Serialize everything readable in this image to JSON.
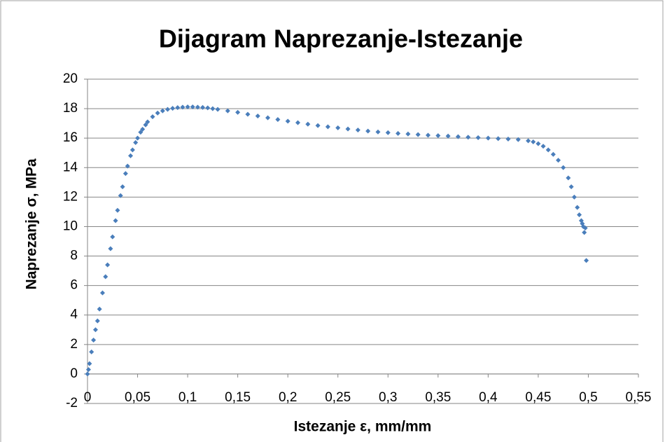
{
  "chart_data": {
    "type": "scatter",
    "title": "Dijagram Naprezanje-Istezanje",
    "x_label": "Istezanje ε, mm/mm",
    "y_label": "Naprezanje σ, MPa",
    "color": "#4a7ebb",
    "x": [
      0,
      0.001,
      0.002,
      0.004,
      0.006,
      0.008,
      0.01,
      0.012,
      0.015,
      0.018,
      0.02,
      0.023,
      0.025,
      0.028,
      0.03,
      0.033,
      0.035,
      0.038,
      0.04,
      0.043,
      0.045,
      0.048,
      0.05,
      0.053,
      0.055,
      0.058,
      0.06,
      0.065,
      0.07,
      0.075,
      0.08,
      0.085,
      0.09,
      0.095,
      0.1,
      0.105,
      0.11,
      0.115,
      0.12,
      0.125,
      0.13,
      0.14,
      0.15,
      0.16,
      0.17,
      0.18,
      0.19,
      0.2,
      0.21,
      0.22,
      0.23,
      0.24,
      0.25,
      0.26,
      0.27,
      0.28,
      0.29,
      0.3,
      0.31,
      0.32,
      0.33,
      0.34,
      0.35,
      0.36,
      0.37,
      0.38,
      0.39,
      0.4,
      0.41,
      0.42,
      0.43,
      0.44,
      0.445,
      0.45,
      0.455,
      0.46,
      0.465,
      0.47,
      0.475,
      0.48,
      0.483,
      0.486,
      0.489,
      0.491,
      0.493,
      0.494,
      0.495,
      0.496,
      0.497,
      0.498
    ],
    "values": [
      0,
      0.3,
      0.7,
      1.5,
      2.3,
      3.0,
      3.6,
      4.4,
      5.5,
      6.6,
      7.4,
      8.5,
      9.3,
      10.4,
      11.1,
      12.1,
      12.7,
      13.6,
      14.1,
      14.8,
      15.2,
      15.7,
      16.0,
      16.4,
      16.6,
      16.9,
      17.1,
      17.45,
      17.7,
      17.85,
      17.95,
      18.02,
      18.07,
      18.1,
      18.12,
      18.12,
      18.1,
      18.08,
      18.05,
      18.0,
      17.95,
      17.85,
      17.75,
      17.62,
      17.5,
      17.38,
      17.26,
      17.15,
      17.05,
      16.95,
      16.85,
      16.77,
      16.7,
      16.62,
      16.55,
      16.48,
      16.42,
      16.37,
      16.32,
      16.28,
      16.24,
      16.2,
      16.17,
      16.14,
      16.1,
      16.06,
      16.03,
      16.0,
      15.97,
      15.94,
      15.9,
      15.82,
      15.75,
      15.62,
      15.45,
      15.2,
      14.9,
      14.5,
      14.0,
      13.3,
      12.7,
      12.0,
      11.3,
      10.8,
      10.4,
      10.2,
      10.0,
      9.6,
      9.9,
      7.7
    ],
    "xlim": [
      0,
      0.55
    ],
    "xticks": [
      0,
      {
        "value": 0.05,
        "label": "0,05"
      },
      {
        "value": 0.1,
        "label": "0,1"
      },
      {
        "value": 0.15,
        "label": "0,15"
      },
      {
        "value": 0.2,
        "label": "0,2"
      },
      {
        "value": 0.25,
        "label": "0,25"
      },
      {
        "value": 0.3,
        "label": "0,3"
      },
      {
        "value": 0.35,
        "label": "0,35"
      },
      {
        "value": 0.4,
        "label": "0,4"
      },
      {
        "value": 0.45,
        "label": "0,45"
      },
      {
        "value": 0.5,
        "label": "0,5"
      },
      {
        "value": 0.55,
        "label": "0,55"
      }
    ],
    "ylim": [
      -2,
      20
    ],
    "yticks": [
      -2,
      0,
      2,
      4,
      6,
      8,
      10,
      12,
      14,
      16,
      18,
      20
    ],
    "grid": true
  }
}
